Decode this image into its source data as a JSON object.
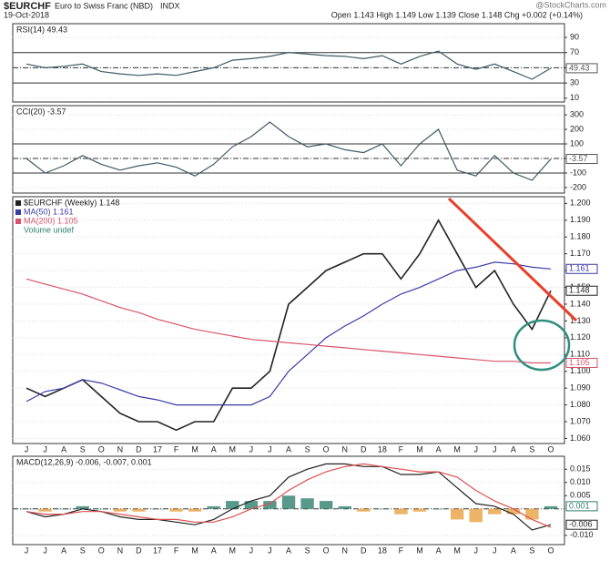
{
  "header": {
    "symbol": "$EURCHF",
    "name": "Euro to Swiss Franc (NBD)",
    "exchange": "INDX",
    "date": "19-Oct-2018",
    "quote": "Open 1.143  High 1.149  Low 1.139  Close 1.148  Chg +0.002 (+0.14%)",
    "brand": "@StockCharts.com"
  },
  "chart_data": [
    {
      "type": "line",
      "title": "RSI(14) 49.43",
      "ylim": [
        5,
        108
      ],
      "yticks": [
        90,
        70,
        50,
        30,
        10
      ],
      "reference_lines": [
        70,
        50,
        30
      ],
      "series": [
        {
          "name": "RSI(14)",
          "color": "#3d5a66",
          "values": [
            55,
            50,
            52,
            55,
            45,
            42,
            40,
            42,
            40,
            45,
            50,
            60,
            62,
            65,
            70,
            68,
            66,
            65,
            62,
            66,
            55,
            65,
            72,
            55,
            48,
            55,
            45,
            35,
            49.43
          ]
        }
      ],
      "value_tags": [
        {
          "value": 49.43,
          "label": "49.43",
          "color": "#555555"
        }
      ]
    },
    {
      "type": "line",
      "title": "CCI(20) -3.57",
      "ylim": [
        -238,
        363
      ],
      "yticks": [
        300,
        200,
        100,
        0,
        -100,
        -200
      ],
      "reference_lines": [
        100,
        0,
        -100
      ],
      "series": [
        {
          "name": "CCI(20)",
          "color": "#3d5a66",
          "values": [
            0,
            -100,
            -50,
            20,
            -40,
            -80,
            -50,
            -30,
            -60,
            -120,
            -40,
            80,
            150,
            250,
            150,
            80,
            100,
            60,
            40,
            100,
            -50,
            100,
            200,
            -80,
            -120,
            20,
            -100,
            -150,
            -3.57
          ]
        }
      ],
      "value_tags": [
        {
          "value": -3.57,
          "label": "-3.57",
          "color": "#555555"
        }
      ]
    },
    {
      "type": "line",
      "title": "$EURCHF (Weekly) 1.148",
      "legend_note": "Volume undef",
      "categories": [
        "J",
        "J",
        "A",
        "S",
        "O",
        "N",
        "D",
        "17",
        "F",
        "M",
        "A",
        "M",
        "J",
        "J",
        "A",
        "S",
        "O",
        "N",
        "D",
        "18",
        "F",
        "M",
        "A",
        "M",
        "J",
        "J",
        "A",
        "S",
        "O"
      ],
      "ylim": [
        1.057,
        1.204
      ],
      "yticks": [
        {
          "value": 1.2,
          "label": "1.200"
        },
        {
          "value": 1.19,
          "label": "1.190"
        },
        {
          "value": 1.18,
          "label": "1.180"
        },
        {
          "value": 1.17,
          "label": "1.170"
        },
        {
          "value": 1.16,
          "label": "1.160"
        },
        {
          "value": 1.15,
          "label": "1.150"
        },
        {
          "value": 1.14,
          "label": "1.140"
        },
        {
          "value": 1.13,
          "label": "1.130"
        },
        {
          "value": 1.12,
          "label": "1.120"
        },
        {
          "value": 1.11,
          "label": "1.110"
        },
        {
          "value": 1.1,
          "label": "1.100"
        },
        {
          "value": 1.09,
          "label": "1.090"
        },
        {
          "value": 1.08,
          "label": "1.080"
        },
        {
          "value": 1.07,
          "label": "1.070"
        },
        {
          "value": 1.06,
          "label": "1.060"
        }
      ],
      "series": [
        {
          "name": "$EURCHF (Weekly) 1.148",
          "color": "#222222",
          "values": [
            1.09,
            1.085,
            1.09,
            1.095,
            1.085,
            1.075,
            1.07,
            1.07,
            1.065,
            1.07,
            1.07,
            1.09,
            1.09,
            1.1,
            1.14,
            1.15,
            1.16,
            1.165,
            1.17,
            1.17,
            1.155,
            1.17,
            1.19,
            1.17,
            1.15,
            1.16,
            1.14,
            1.125,
            1.148
          ]
        },
        {
          "name": "MA(50) 1.161",
          "color": "#3b3ba8",
          "values": [
            1.082,
            1.088,
            1.09,
            1.095,
            1.093,
            1.089,
            1.085,
            1.083,
            1.08,
            1.08,
            1.08,
            1.08,
            1.08,
            1.085,
            1.1,
            1.11,
            1.12,
            1.127,
            1.133,
            1.14,
            1.146,
            1.15,
            1.155,
            1.16,
            1.162,
            1.165,
            1.164,
            1.162,
            1.161
          ]
        },
        {
          "name": "MA(200) 1.105",
          "color": "#d9536a",
          "values": [
            1.155,
            1.152,
            1.149,
            1.146,
            1.142,
            1.138,
            1.135,
            1.131,
            1.128,
            1.125,
            1.123,
            1.121,
            1.119,
            1.118,
            1.117,
            1.116,
            1.115,
            1.114,
            1.113,
            1.112,
            1.111,
            1.11,
            1.109,
            1.108,
            1.107,
            1.106,
            1.106,
            1.105,
            1.105
          ]
        }
      ],
      "value_tags": [
        {
          "value": 1.161,
          "label": "1.161",
          "color": "#3b3ba8"
        },
        {
          "value": 1.148,
          "label": "1.148",
          "color": "#222222"
        },
        {
          "value": 1.105,
          "label": "1.105",
          "color": "#d9536a"
        }
      ]
    },
    {
      "type": "line",
      "title": "MACD(12,26,9) -0.006, -0.007, 0.001",
      "ylim": [
        -0.0135,
        0.0199
      ],
      "yticks": [
        0.015,
        {
          "value": 0.01,
          "label": "0.010"
        },
        0.005,
        {
          "value": -0.01,
          "label": "-0.010"
        }
      ],
      "reference_lines": [
        0
      ],
      "series": [
        {
          "name": "MACD",
          "type": "bar",
          "color": "#2f7f6f",
          "values": [
            0,
            -0.001,
            0,
            0.001,
            0,
            -0.001,
            -0.001,
            0,
            -0.001,
            -0.001,
            0.001,
            0.003,
            0.003,
            0.003,
            0.005,
            0.004,
            0.003,
            0.001,
            -0.001,
            0,
            -0.002,
            -0.001,
            0,
            -0.004,
            -0.005,
            -0.002,
            -0.002,
            -0.004,
            0.001
          ]
        },
        {
          "name": "MACD line",
          "color": "#222222",
          "values": [
            -0.001,
            -0.003,
            -0.002,
            0,
            -0.001,
            -0.003,
            -0.004,
            -0.004,
            -0.005,
            -0.006,
            -0.004,
            0,
            0.003,
            0.005,
            0.012,
            0.015,
            0.017,
            0.017,
            0.016,
            0.016,
            0.013,
            0.013,
            0.014,
            0.008,
            0.002,
            0.001,
            -0.002,
            -0.008,
            -0.006
          ]
        },
        {
          "name": "Signal",
          "color": "#e05050",
          "values": [
            -0.001,
            -0.002,
            -0.002,
            -0.001,
            -0.001,
            -0.002,
            -0.003,
            -0.004,
            -0.004,
            -0.005,
            -0.005,
            -0.003,
            0,
            0.002,
            0.007,
            0.011,
            0.014,
            0.016,
            0.017,
            0.016,
            0.015,
            0.014,
            0.014,
            0.012,
            0.007,
            0.003,
            0,
            -0.004,
            -0.007
          ]
        }
      ],
      "value_tags": [
        {
          "value": 0.001,
          "label": "0.001",
          "color": "#2f7f6f"
        },
        {
          "value": -0.006,
          "label": "-0.006",
          "color": "#222222"
        }
      ]
    }
  ]
}
